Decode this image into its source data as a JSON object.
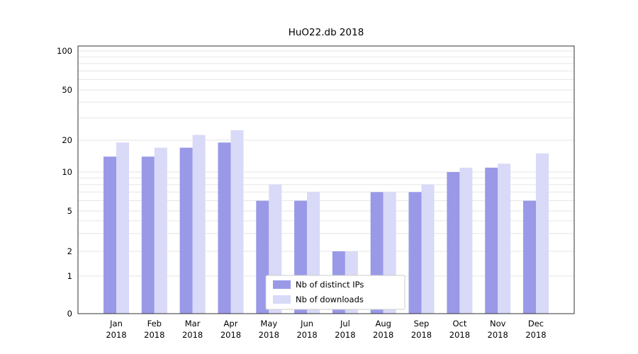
{
  "chart_data": {
    "type": "bar",
    "title": "HuO22.db 2018",
    "year_label": "2018",
    "categories": [
      "Jan",
      "Feb",
      "Mar",
      "Apr",
      "May",
      "Jun",
      "Jul",
      "Aug",
      "Sep",
      "Oct",
      "Nov",
      "Dec"
    ],
    "series": [
      {
        "name": "Nb of distinct IPs",
        "color": "#9999e8",
        "values": [
          14,
          14,
          17,
          19,
          6,
          6,
          2,
          7,
          7,
          10,
          11,
          6
        ]
      },
      {
        "name": "Nb of downloads",
        "color": "#d9d9f8",
        "values": [
          19,
          17,
          22,
          24,
          8,
          7,
          2,
          7,
          8,
          11,
          12,
          15
        ]
      }
    ],
    "yticks": [
      0,
      1,
      2,
      5,
      10,
      20,
      50,
      100
    ],
    "ylim": [
      0,
      100
    ],
    "scale": "log-like",
    "grid": true,
    "legend_position": "bottom-center"
  },
  "colors": {
    "grid": "#e6e6e6",
    "frame": "#333333",
    "text": "#000000",
    "background": "#ffffff",
    "legend_border": "#cccccc",
    "legend_background": "#ffffff"
  }
}
